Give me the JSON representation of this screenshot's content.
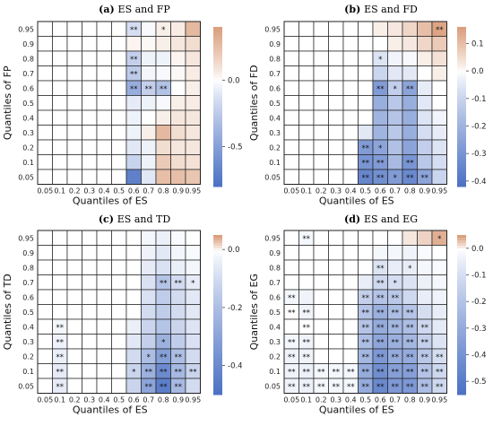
{
  "figure": {
    "panel_labels": [
      "(a)",
      "(b)",
      "(c)",
      "(d)"
    ]
  },
  "chart_data": [
    {
      "type": "heatmap",
      "panel_label": "(a)",
      "title": "ES and FP",
      "xlabel": "Quantiles of ES",
      "ylabel": "Quantiles of FP",
      "x_ticks": [
        "0.05",
        "0.1",
        "0.2",
        "0.3",
        "0.4",
        "0.5",
        "0.6",
        "0.7",
        "0.8",
        "0.9",
        "0.95"
      ],
      "y_ticks": [
        "0.95",
        "0.9",
        "0.8",
        "0.7",
        "0.6",
        "0.5",
        "0.4",
        "0.3",
        "0.2",
        "0.1",
        "0.05"
      ],
      "colorbar": {
        "ticks": [
          0.0,
          -0.5
        ],
        "range": [
          -0.8,
          0.4
        ],
        "colormap": "blue-white-orange"
      },
      "grid_region": "x >= 0.6 colored",
      "values": [
        [
          0,
          0,
          0,
          0,
          0,
          0,
          -0.15,
          -0.02,
          0.05,
          0.06,
          0.28
        ],
        [
          0,
          0,
          0,
          0,
          0,
          0,
          0.03,
          0.02,
          0.05,
          0.08,
          0.12
        ],
        [
          0,
          0,
          0,
          0,
          0,
          0,
          -0.22,
          -0.05,
          -0.05,
          0.03,
          0.08
        ],
        [
          0,
          0,
          0,
          0,
          0,
          0,
          -0.25,
          -0.03,
          -0.02,
          0.02,
          0.06
        ],
        [
          0,
          0,
          0,
          0,
          0,
          0,
          -0.42,
          -0.22,
          -0.3,
          0.0,
          0.05
        ],
        [
          0,
          0,
          0,
          0,
          0,
          0,
          -0.08,
          -0.05,
          -0.02,
          0.05,
          0.06
        ],
        [
          0,
          0,
          0,
          0,
          0,
          0,
          -0.05,
          0.0,
          0.05,
          0.08,
          0.08
        ],
        [
          0,
          0,
          0,
          0,
          0,
          0,
          -0.05,
          0.05,
          0.28,
          0.12,
          0.08
        ],
        [
          0,
          0,
          0,
          0,
          0,
          0,
          -0.1,
          -0.05,
          0.12,
          0.08,
          0.08
        ],
        [
          0,
          0,
          0,
          0,
          0,
          0,
          -0.2,
          -0.05,
          0.2,
          0.12,
          0.1
        ],
        [
          0,
          0,
          0,
          0,
          0,
          0,
          -0.7,
          -0.1,
          0.25,
          0.25,
          0.22
        ]
      ],
      "significance": [
        [
          "",
          "",
          "",
          "",
          "",
          "",
          "**",
          "",
          "*",
          "",
          ""
        ],
        [
          "",
          "",
          "",
          "",
          "",
          "",
          "",
          "",
          "",
          "",
          ""
        ],
        [
          "",
          "",
          "",
          "",
          "",
          "",
          "**",
          "",
          "",
          "",
          ""
        ],
        [
          "",
          "",
          "",
          "",
          "",
          "",
          "**",
          "",
          "",
          "",
          ""
        ],
        [
          "",
          "",
          "",
          "",
          "",
          "",
          "**",
          "**",
          "**",
          "",
          ""
        ],
        [
          "",
          "",
          "",
          "",
          "",
          "",
          "",
          "",
          "",
          "",
          ""
        ],
        [
          "",
          "",
          "",
          "",
          "",
          "",
          "",
          "",
          "",
          "",
          ""
        ],
        [
          "",
          "",
          "",
          "",
          "",
          "",
          "",
          "",
          "",
          "",
          ""
        ],
        [
          "",
          "",
          "",
          "",
          "",
          "",
          "",
          "",
          "",
          "",
          ""
        ],
        [
          "",
          "",
          "",
          "",
          "",
          "",
          "",
          "",
          "",
          "",
          ""
        ],
        [
          "",
          "",
          "",
          "",
          "",
          "",
          "",
          "",
          "",
          "",
          ""
        ]
      ]
    },
    {
      "type": "heatmap",
      "panel_label": "(b)",
      "title": "ES and FD",
      "xlabel": "Quantiles of ES",
      "ylabel": "Quantiles of FD",
      "x_ticks": [
        "0.05",
        "0.1",
        "0.2",
        "0.3",
        "0.4",
        "0.5",
        "0.6",
        "0.7",
        "0.8",
        "0.9",
        "0.95"
      ],
      "y_ticks": [
        "0.95",
        "0.9",
        "0.8",
        "0.7",
        "0.6",
        "0.5",
        "0.4",
        "0.3",
        "0.2",
        "0.1",
        "0.05"
      ],
      "colorbar": {
        "ticks": [
          0.1,
          0.0,
          -0.1,
          -0.2,
          -0.3,
          -0.4
        ],
        "range": [
          -0.42,
          0.16
        ],
        "colormap": "blue-white-orange"
      },
      "values": [
        [
          0,
          0,
          0,
          0,
          0,
          0,
          0.02,
          0.03,
          0.06,
          0.1,
          0.15
        ],
        [
          0,
          0,
          0,
          0,
          0,
          0,
          0.0,
          0.02,
          0.03,
          0.06,
          0.08
        ],
        [
          0,
          0,
          0,
          0,
          0,
          0,
          -0.06,
          -0.02,
          -0.01,
          0.02,
          0.04
        ],
        [
          0,
          0,
          0,
          0,
          0,
          0,
          -0.1,
          -0.05,
          -0.05,
          0.0,
          0.02
        ],
        [
          0,
          0,
          0,
          0,
          0,
          0,
          -0.28,
          -0.12,
          -0.25,
          -0.04,
          0.0
        ],
        [
          0,
          0,
          0,
          0,
          0,
          0,
          -0.22,
          -0.14,
          -0.22,
          -0.05,
          0.0
        ],
        [
          0,
          0,
          0,
          0,
          0,
          0,
          -0.2,
          -0.15,
          -0.22,
          -0.06,
          -0.02
        ],
        [
          0,
          0,
          0,
          0,
          0,
          -0.05,
          -0.2,
          -0.14,
          -0.22,
          -0.08,
          -0.04
        ],
        [
          0,
          0,
          0,
          0,
          0,
          -0.28,
          -0.25,
          -0.16,
          -0.25,
          -0.12,
          -0.06
        ],
        [
          0,
          0,
          0,
          0,
          0,
          -0.3,
          -0.28,
          -0.18,
          -0.3,
          -0.14,
          -0.08
        ],
        [
          0,
          0,
          0,
          0,
          0,
          -0.35,
          -0.32,
          -0.28,
          -0.34,
          -0.25,
          -0.1
        ]
      ],
      "significance": [
        [
          "",
          "",
          "",
          "",
          "",
          "",
          "",
          "",
          "",
          "",
          "**"
        ],
        [
          "",
          "",
          "",
          "",
          "",
          "",
          "",
          "",
          "",
          "",
          ""
        ],
        [
          "",
          "",
          "",
          "",
          "",
          "",
          "*",
          "",
          "",
          "",
          ""
        ],
        [
          "",
          "",
          "",
          "",
          "",
          "",
          "",
          "",
          "",
          "",
          ""
        ],
        [
          "",
          "",
          "",
          "",
          "",
          "",
          "**",
          "*",
          "**",
          "",
          ""
        ],
        [
          "",
          "",
          "",
          "",
          "",
          "",
          "",
          "",
          "",
          "",
          ""
        ],
        [
          "",
          "",
          "",
          "",
          "",
          "",
          "",
          "",
          "",
          "",
          ""
        ],
        [
          "",
          "",
          "",
          "",
          "",
          "",
          "",
          "",
          "",
          "",
          ""
        ],
        [
          "",
          "",
          "",
          "",
          "",
          "**",
          "*",
          "",
          "",
          "",
          ""
        ],
        [
          "",
          "",
          "",
          "",
          "",
          "**",
          "**",
          "",
          "**",
          "",
          ""
        ],
        [
          "",
          "",
          "",
          "",
          "",
          "**",
          "**",
          "*",
          "**",
          "**",
          ""
        ]
      ]
    },
    {
      "type": "heatmap",
      "panel_label": "(c)",
      "title": "ES and TD",
      "xlabel": "Quantiles of ES",
      "ylabel": "Quantiles of TD",
      "x_ticks": [
        "0.05",
        "0.1",
        "0.2",
        "0.3",
        "0.4",
        "0.5",
        "0.6",
        "0.7",
        "0.8",
        "0.9",
        "0.95"
      ],
      "y_ticks": [
        "0.95",
        "0.9",
        "0.8",
        "0.7",
        "0.6",
        "0.5",
        "0.4",
        "0.3",
        "0.2",
        "0.1",
        "0.05"
      ],
      "colorbar": {
        "ticks": [
          0.0,
          -0.2,
          -0.4
        ],
        "range": [
          -0.5,
          0.05
        ],
        "colormap": "blue-white"
      },
      "values": [
        [
          0,
          0,
          0,
          0,
          0,
          0,
          0,
          -0.02,
          -0.04,
          -0.01,
          0.0
        ],
        [
          0,
          0,
          0,
          0,
          0,
          0,
          0,
          -0.03,
          -0.06,
          -0.02,
          -0.01
        ],
        [
          0,
          0,
          0,
          0,
          0,
          0,
          0,
          -0.05,
          -0.08,
          -0.04,
          -0.02
        ],
        [
          0,
          0,
          0,
          0,
          0,
          0,
          0,
          -0.08,
          -0.18,
          -0.1,
          -0.05
        ],
        [
          0,
          0,
          0,
          0,
          0,
          0,
          0,
          -0.08,
          -0.15,
          -0.1,
          -0.06
        ],
        [
          0,
          0,
          0,
          0,
          0,
          0,
          0,
          -0.1,
          -0.15,
          -0.1,
          -0.06
        ],
        [
          0,
          -0.02,
          0,
          0,
          0,
          0,
          -0.04,
          -0.12,
          -0.18,
          -0.12,
          -0.07
        ],
        [
          0,
          -0.03,
          0,
          0,
          0,
          0,
          -0.06,
          -0.14,
          -0.25,
          -0.15,
          -0.08
        ],
        [
          0,
          -0.04,
          0,
          0,
          0,
          0,
          -0.1,
          -0.2,
          -0.32,
          -0.2,
          -0.1
        ],
        [
          0,
          -0.05,
          0,
          0,
          0,
          0,
          -0.12,
          -0.25,
          -0.4,
          -0.22,
          -0.12
        ],
        [
          0,
          -0.05,
          0,
          0,
          0,
          0,
          -0.12,
          -0.3,
          -0.45,
          -0.22,
          -0.1
        ]
      ],
      "significance": [
        [
          "",
          "",
          "",
          "",
          "",
          "",
          "",
          "",
          "",
          "",
          ""
        ],
        [
          "",
          "",
          "",
          "",
          "",
          "",
          "",
          "",
          "",
          "",
          ""
        ],
        [
          "",
          "",
          "",
          "",
          "",
          "",
          "",
          "",
          "",
          "",
          ""
        ],
        [
          "",
          "",
          "",
          "",
          "",
          "",
          "",
          "",
          "**",
          "**",
          "*"
        ],
        [
          "",
          "",
          "",
          "",
          "",
          "",
          "",
          "",
          "",
          "",
          ""
        ],
        [
          "",
          "",
          "",
          "",
          "",
          "",
          "",
          "",
          "",
          "",
          ""
        ],
        [
          "",
          "**",
          "",
          "",
          "",
          "",
          "",
          "",
          "",
          "",
          ""
        ],
        [
          "",
          "**",
          "",
          "",
          "",
          "",
          "",
          "",
          "*",
          "",
          ""
        ],
        [
          "",
          "**",
          "",
          "",
          "",
          "",
          "",
          "*",
          "**",
          "**",
          ""
        ],
        [
          "",
          "**",
          "",
          "",
          "",
          "",
          "*",
          "**",
          "**",
          "**",
          "**"
        ],
        [
          "",
          "**",
          "",
          "",
          "",
          "",
          "",
          "**",
          "**",
          "**",
          ""
        ]
      ]
    },
    {
      "type": "heatmap",
      "panel_label": "(d)",
      "title": "ES and EG",
      "xlabel": "Quantiles of ES",
      "ylabel": "Quantiles of EG",
      "x_ticks": [
        "0.05",
        "0.1",
        "0.2",
        "0.3",
        "0.4",
        "0.5",
        "0.6",
        "0.7",
        "0.8",
        "0.9",
        "0.95"
      ],
      "y_ticks": [
        "0.95",
        "0.9",
        "0.8",
        "0.7",
        "0.6",
        "0.5",
        "0.4",
        "0.3",
        "0.2",
        "0.1",
        "0.05"
      ],
      "colorbar": {
        "ticks": [
          0.0,
          -0.1,
          -0.2,
          -0.3,
          -0.4,
          -0.5
        ],
        "range": [
          -0.55,
          0.05
        ],
        "colormap": "blue-white-orange"
      },
      "values": [
        [
          0,
          -0.02,
          0,
          0,
          0,
          0,
          0,
          0,
          0.01,
          0.02,
          0.04
        ],
        [
          0,
          0,
          0,
          0,
          0,
          0,
          -0.02,
          -0.02,
          -0.03,
          -0.01,
          0.0
        ],
        [
          0,
          0,
          0,
          0,
          0,
          0,
          -0.08,
          -0.05,
          -0.05,
          -0.02,
          -0.01
        ],
        [
          0,
          0,
          0,
          0,
          0,
          -0.05,
          -0.12,
          -0.1,
          -0.08,
          -0.04,
          -0.02
        ],
        [
          -0.02,
          -0.03,
          0,
          0,
          0,
          -0.15,
          -0.2,
          -0.18,
          -0.12,
          -0.05,
          -0.03
        ],
        [
          0,
          -0.03,
          0,
          0,
          0,
          -0.2,
          -0.28,
          -0.22,
          -0.2,
          -0.1,
          -0.05
        ],
        [
          0,
          0,
          0,
          0,
          0,
          -0.2,
          -0.3,
          -0.25,
          -0.22,
          -0.12,
          -0.06
        ],
        [
          -0.02,
          -0.03,
          0,
          0,
          0,
          -0.22,
          -0.32,
          -0.28,
          -0.25,
          -0.15,
          -0.08
        ],
        [
          -0.03,
          -0.03,
          0,
          0,
          0,
          -0.25,
          -0.38,
          -0.3,
          -0.3,
          -0.18,
          -0.1
        ],
        [
          -0.03,
          -0.04,
          -0.02,
          -0.02,
          -0.02,
          -0.3,
          -0.42,
          -0.35,
          -0.35,
          -0.2,
          -0.12
        ],
        [
          -0.03,
          -0.04,
          -0.02,
          -0.02,
          -0.02,
          -0.3,
          -0.45,
          -0.38,
          -0.38,
          -0.22,
          -0.12
        ]
      ],
      "significance": [
        [
          "",
          "**",
          "",
          "",
          "",
          "",
          "",
          "",
          "",
          "",
          "*"
        ],
        [
          "",
          "",
          "",
          "",
          "",
          "",
          "",
          "",
          "",
          "",
          ""
        ],
        [
          "",
          "",
          "",
          "",
          "",
          "",
          "**",
          "",
          "*",
          "",
          ""
        ],
        [
          "",
          "",
          "",
          "",
          "",
          "",
          "**",
          "*",
          "",
          "",
          ""
        ],
        [
          "**",
          "",
          "",
          "",
          "",
          "**",
          "**",
          "**",
          "",
          "",
          ""
        ],
        [
          "**",
          "**",
          "",
          "",
          "",
          "**",
          "**",
          "**",
          "**",
          "",
          ""
        ],
        [
          "",
          "**",
          "",
          "",
          "",
          "**",
          "**",
          "**",
          "**",
          "**",
          ""
        ],
        [
          "**",
          "**",
          "",
          "",
          "",
          "**",
          "**",
          "**",
          "**",
          "**",
          ""
        ],
        [
          "**",
          "**",
          "",
          "",
          "",
          "**",
          "**",
          "**",
          "**",
          "**",
          "**"
        ],
        [
          "**",
          "**",
          "**",
          "**",
          "**",
          "**",
          "**",
          "**",
          "**",
          "**",
          "**"
        ],
        [
          "**",
          "**",
          "**",
          "**",
          "**",
          "**",
          "**",
          "**",
          "**",
          "**",
          "**"
        ]
      ]
    }
  ]
}
